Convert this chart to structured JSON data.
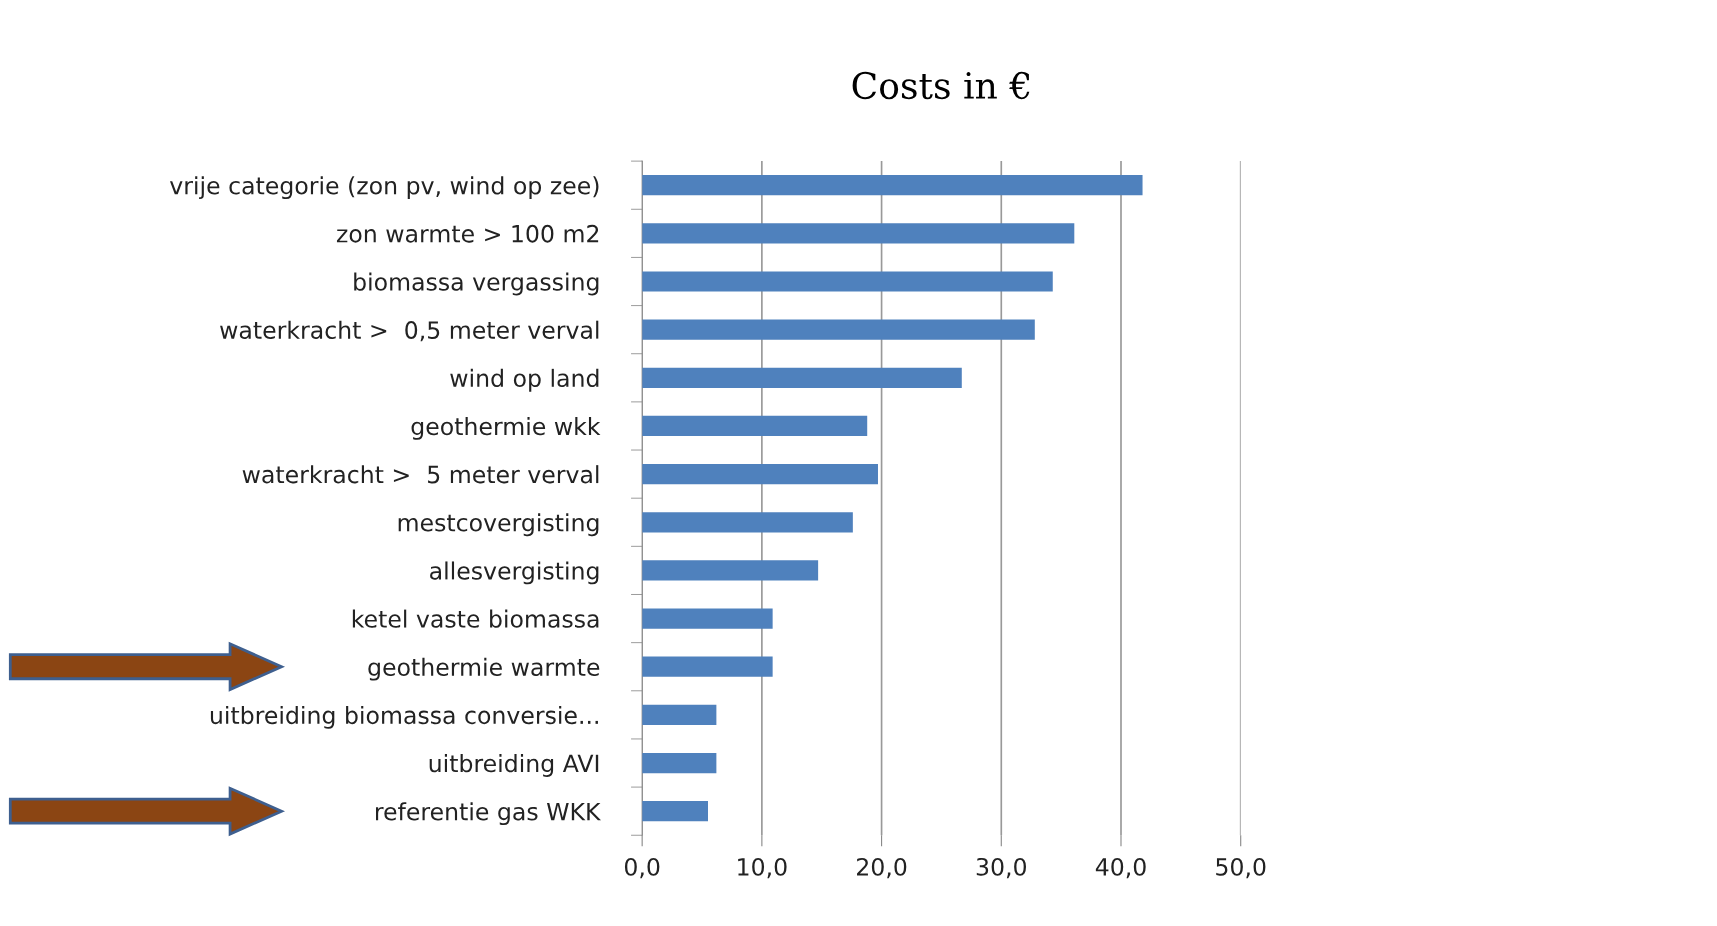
{
  "chart_data": {
    "type": "bar",
    "orientation": "horizontal",
    "title": "Costs in €",
    "categories": [
      "vrije categorie (zon pv, wind op zee)",
      "zon warmte > 100 m2",
      "biomassa vergassing",
      "waterkracht >  0,5 meter verval",
      "wind op land",
      "geothermie wkk",
      "waterkracht >  5 meter verval",
      "mestcovergisting",
      "allesvergisting",
      "ketel vaste biomassa",
      "geothermie warmte",
      "uitbreiding biomassa conversie...",
      "uitbreiding AVI",
      "referentie gas WKK"
    ],
    "values": [
      41.8,
      36.1,
      34.3,
      32.8,
      26.7,
      18.8,
      19.7,
      17.6,
      14.7,
      10.9,
      10.9,
      6.2,
      6.2,
      5.5
    ],
    "color": "#4f81bd",
    "xlim": [
      0,
      50
    ],
    "xticks": [
      {
        "value": 0,
        "label": "0,0"
      },
      {
        "value": 10,
        "label": "10,0"
      },
      {
        "value": 20,
        "label": "20,0"
      },
      {
        "value": 30,
        "label": "30,0"
      },
      {
        "value": 40,
        "label": "40,0"
      },
      {
        "value": 50,
        "label": "50,0"
      }
    ],
    "grid": "x"
  }
}
